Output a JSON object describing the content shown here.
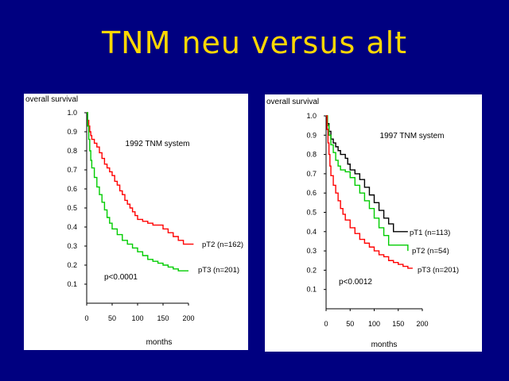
{
  "slide": {
    "title": "TNM neu versus alt",
    "background": "#000080",
    "title_color": "#ffd700"
  },
  "chart_data": [
    {
      "type": "line",
      "title": "1992   TNM  system",
      "ylabel": "overall   survival",
      "xlabel": "months",
      "xlim": [
        0,
        200
      ],
      "ylim": [
        0,
        1.0
      ],
      "x_ticks": [
        0,
        50,
        100,
        150,
        200
      ],
      "y_ticks": [
        0.1,
        0.2,
        0.3,
        0.4,
        0.5,
        0.6,
        0.7,
        0.8,
        0.9,
        1.0
      ],
      "annotation": "p<0.0001",
      "series": [
        {
          "name": "pT2 (n=162)",
          "color": "#ff0000",
          "x": [
            0,
            2,
            4,
            6,
            8,
            10,
            15,
            20,
            25,
            30,
            35,
            40,
            45,
            50,
            55,
            60,
            65,
            70,
            75,
            80,
            85,
            90,
            95,
            100,
            110,
            120,
            130,
            140,
            150,
            160,
            170,
            180,
            190,
            200,
            210
          ],
          "y": [
            1.0,
            0.96,
            0.93,
            0.9,
            0.88,
            0.86,
            0.84,
            0.82,
            0.79,
            0.76,
            0.73,
            0.71,
            0.69,
            0.67,
            0.64,
            0.62,
            0.59,
            0.57,
            0.54,
            0.52,
            0.5,
            0.48,
            0.46,
            0.44,
            0.43,
            0.42,
            0.41,
            0.41,
            0.39,
            0.37,
            0.35,
            0.33,
            0.31,
            0.31,
            0.31
          ]
        },
        {
          "name": "pT3 (n=201)",
          "color": "#00cc00",
          "x": [
            0,
            2,
            4,
            6,
            8,
            10,
            15,
            20,
            25,
            30,
            35,
            40,
            45,
            50,
            60,
            70,
            80,
            90,
            100,
            110,
            120,
            130,
            140,
            150,
            160,
            170,
            180,
            190,
            200
          ],
          "y": [
            1.0,
            0.93,
            0.86,
            0.8,
            0.75,
            0.71,
            0.66,
            0.61,
            0.57,
            0.53,
            0.49,
            0.45,
            0.42,
            0.39,
            0.36,
            0.33,
            0.31,
            0.29,
            0.27,
            0.25,
            0.23,
            0.22,
            0.21,
            0.2,
            0.19,
            0.18,
            0.17,
            0.17,
            0.17
          ]
        }
      ]
    },
    {
      "type": "line",
      "title": "1997   TNM  system",
      "ylabel": "overall   survival",
      "xlabel": "months",
      "xlim": [
        0,
        200
      ],
      "ylim": [
        0,
        1.0
      ],
      "x_ticks": [
        0,
        50,
        100,
        150,
        200
      ],
      "y_ticks": [
        0.1,
        0.2,
        0.3,
        0.4,
        0.5,
        0.6,
        0.7,
        0.8,
        0.9,
        1.0
      ],
      "annotation": "p<0.0012",
      "series": [
        {
          "name": "pT1 (n=113)",
          "color": "#000000",
          "x": [
            0,
            3,
            6,
            10,
            15,
            20,
            25,
            30,
            40,
            45,
            50,
            60,
            70,
            80,
            90,
            100,
            110,
            120,
            130,
            140,
            150,
            160,
            170
          ],
          "y": [
            1.0,
            0.96,
            0.92,
            0.88,
            0.86,
            0.84,
            0.82,
            0.8,
            0.78,
            0.75,
            0.72,
            0.7,
            0.67,
            0.63,
            0.59,
            0.55,
            0.51,
            0.47,
            0.44,
            0.4,
            0.4,
            0.4,
            0.4
          ]
        },
        {
          "name": "pT2 (n=54)",
          "color": "#00cc00",
          "x": [
            0,
            3,
            6,
            10,
            15,
            20,
            25,
            30,
            40,
            50,
            60,
            70,
            80,
            90,
            100,
            110,
            120,
            130,
            140,
            150,
            160,
            170
          ],
          "y": [
            1.0,
            0.95,
            0.9,
            0.85,
            0.81,
            0.77,
            0.74,
            0.72,
            0.71,
            0.68,
            0.64,
            0.6,
            0.56,
            0.52,
            0.47,
            0.42,
            0.38,
            0.33,
            0.33,
            0.33,
            0.33,
            0.3
          ]
        },
        {
          "name": "pT3 (n=201)",
          "color": "#ff0000",
          "x": [
            0,
            2,
            4,
            6,
            8,
            10,
            15,
            20,
            25,
            30,
            35,
            40,
            50,
            60,
            70,
            80,
            90,
            100,
            110,
            120,
            130,
            140,
            150,
            160,
            170,
            180
          ],
          "y": [
            1.0,
            0.93,
            0.86,
            0.8,
            0.74,
            0.69,
            0.64,
            0.6,
            0.56,
            0.52,
            0.49,
            0.46,
            0.42,
            0.39,
            0.36,
            0.34,
            0.32,
            0.3,
            0.28,
            0.27,
            0.25,
            0.24,
            0.23,
            0.22,
            0.21,
            0.21
          ]
        }
      ]
    }
  ]
}
